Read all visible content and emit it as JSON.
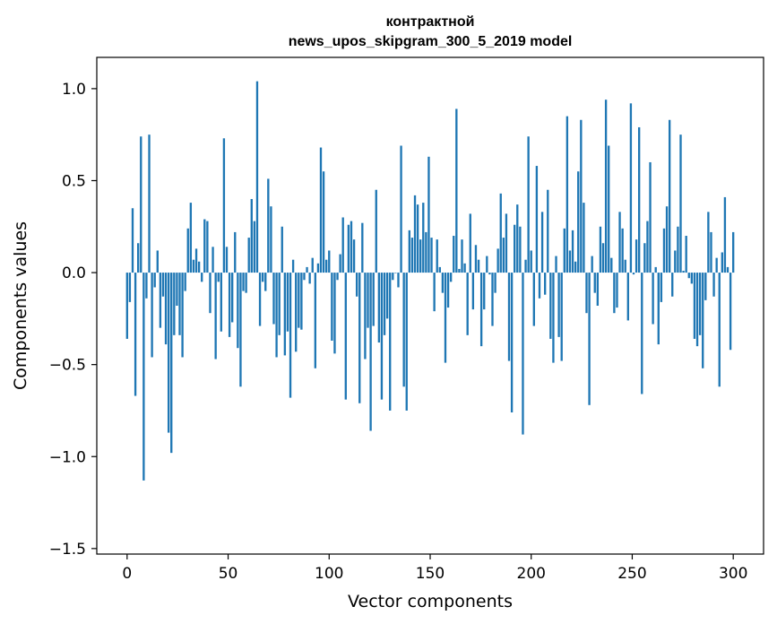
{
  "chart_data": {
    "type": "bar",
    "title_line1": "контрактной",
    "title_line2": "news_upos_skipgram_300_5_2019 model",
    "xlabel": "Vector components",
    "ylabel": "Components values",
    "xlim": [
      -15,
      315
    ],
    "ylim": [
      -1.53,
      1.17
    ],
    "xticks": [
      0,
      50,
      100,
      150,
      200,
      250,
      300
    ],
    "xtick_labels": [
      "0",
      "50",
      "100",
      "150",
      "200",
      "250",
      "300"
    ],
    "yticks": [
      -1.5,
      -1.0,
      -0.5,
      0.0,
      0.5,
      1.0
    ],
    "ytick_labels": [
      "−1.5",
      "−1.0",
      "−0.5",
      "0.0",
      "0.5",
      "1.0"
    ],
    "bar_color": "#1f77b4",
    "x_start": 0,
    "values": [
      -0.36,
      -0.16,
      0.35,
      -0.67,
      0.16,
      0.74,
      -1.13,
      -0.14,
      0.75,
      -0.46,
      -0.08,
      0.12,
      -0.3,
      -0.13,
      -0.39,
      -0.87,
      -0.98,
      -0.34,
      -0.18,
      -0.34,
      -0.46,
      -0.1,
      0.24,
      0.38,
      0.07,
      0.13,
      0.06,
      -0.05,
      0.29,
      0.28,
      -0.22,
      0.14,
      -0.47,
      -0.05,
      -0.32,
      0.73,
      0.14,
      -0.35,
      -0.27,
      0.22,
      -0.41,
      -0.62,
      -0.1,
      -0.11,
      0.19,
      0.4,
      0.28,
      1.04,
      -0.29,
      -0.05,
      -0.1,
      0.51,
      0.36,
      -0.28,
      -0.46,
      -0.34,
      0.25,
      -0.45,
      -0.32,
      -0.68,
      0.07,
      -0.43,
      -0.3,
      -0.31,
      -0.04,
      0.03,
      -0.06,
      0.08,
      -0.52,
      0.05,
      0.68,
      0.55,
      0.07,
      0.12,
      -0.37,
      -0.44,
      -0.04,
      0.1,
      0.3,
      -0.69,
      0.26,
      0.28,
      0.18,
      -0.13,
      -0.71,
      0.27,
      -0.47,
      -0.3,
      -0.86,
      -0.29,
      0.45,
      -0.38,
      -0.69,
      -0.34,
      -0.25,
      -0.75,
      -0.04,
      0.0,
      -0.08,
      0.69,
      -0.62,
      -0.75,
      0.23,
      0.19,
      0.42,
      0.37,
      0.18,
      0.38,
      0.22,
      0.63,
      0.19,
      -0.21,
      0.18,
      0.03,
      -0.11,
      -0.49,
      -0.19,
      -0.05,
      0.2,
      0.89,
      0.02,
      0.18,
      0.05,
      -0.34,
      0.32,
      -0.2,
      0.15,
      0.07,
      -0.4,
      -0.2,
      0.09,
      -0.01,
      -0.29,
      -0.11,
      0.13,
      0.43,
      0.19,
      0.32,
      -0.48,
      -0.76,
      0.26,
      0.37,
      0.25,
      -0.88,
      0.07,
      0.74,
      0.12,
      -0.29,
      0.58,
      -0.14,
      0.33,
      -0.12,
      0.45,
      -0.36,
      -0.49,
      0.09,
      -0.35,
      -0.48,
      0.24,
      0.85,
      0.12,
      0.23,
      0.06,
      0.55,
      0.83,
      0.38,
      -0.22,
      -0.72,
      0.09,
      -0.11,
      -0.18,
      0.25,
      0.16,
      0.94,
      0.69,
      0.08,
      -0.22,
      -0.19,
      0.33,
      0.24,
      0.07,
      -0.26,
      0.92,
      -0.01,
      0.18,
      0.79,
      -0.66,
      0.16,
      0.28,
      0.6,
      -0.28,
      0.03,
      -0.39,
      -0.16,
      0.24,
      0.36,
      0.83,
      -0.13,
      0.12,
      0.25,
      0.75,
      0.01,
      0.2,
      -0.03,
      -0.06,
      -0.36,
      -0.4,
      -0.34,
      -0.52,
      -0.15,
      0.33,
      0.22,
      -0.13,
      0.08,
      -0.62,
      0.11,
      0.41,
      0.03,
      -0.42,
      0.22
    ]
  }
}
